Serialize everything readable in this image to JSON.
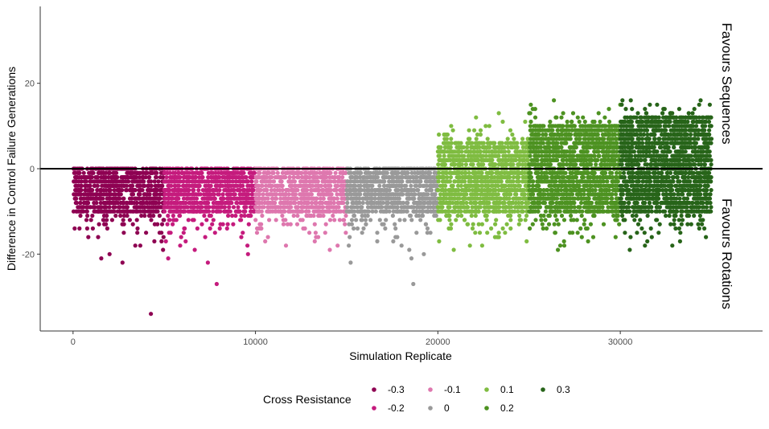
{
  "chart_data": {
    "type": "scatter",
    "title": "",
    "xlabel": "Simulation Replicate",
    "ylabel": "Difference in Control Failure Generations",
    "xlim": [
      -1800,
      37800
    ],
    "ylim": [
      -38,
      38
    ],
    "x_ticks": [
      0,
      10000,
      20000,
      30000
    ],
    "x_tick_labels": [
      "0",
      "10000",
      "20000",
      "30000"
    ],
    "y_ticks": [
      -20,
      0,
      20
    ],
    "y_tick_labels": [
      "-20",
      "0",
      "20"
    ],
    "reference_line_y": 0,
    "annotations": [
      "Favours Sequences",
      "Favours Rotations"
    ],
    "grid": false,
    "legend": {
      "title": "Cross Resistance",
      "placement": "bottom"
    },
    "series": [
      {
        "name": "-0.3",
        "color": "#8E0152",
        "x_range": [
          0,
          5000
        ],
        "y_mode": [
          -10,
          0
        ],
        "y_min": -34,
        "y_max": 0
      },
      {
        "name": "-0.2",
        "color": "#C51B7D",
        "x_range": [
          5000,
          10000
        ],
        "y_mode": [
          -10,
          0
        ],
        "y_min": -27,
        "y_max": 0
      },
      {
        "name": "-0.1",
        "color": "#DE77AE",
        "x_range": [
          10000,
          15000
        ],
        "y_mode": [
          -10,
          0
        ],
        "y_min": -19,
        "y_max": 0
      },
      {
        "name": "0",
        "color": "#999999",
        "x_range": [
          15000,
          20000
        ],
        "y_mode": [
          -10,
          0
        ],
        "y_min": -27,
        "y_max": 0
      },
      {
        "name": "0.1",
        "color": "#7FBC41",
        "x_range": [
          20000,
          25000
        ],
        "y_mode": [
          -10,
          6
        ],
        "y_min": -19,
        "y_max": 13
      },
      {
        "name": "0.2",
        "color": "#4D9221",
        "x_range": [
          25000,
          30000
        ],
        "y_mode": [
          -10,
          10
        ],
        "y_min": -19,
        "y_max": 16
      },
      {
        "name": "0.3",
        "color": "#276419",
        "x_range": [
          30000,
          35000
        ],
        "y_mode": [
          -10,
          12
        ],
        "y_min": -19,
        "y_max": 16
      }
    ]
  }
}
